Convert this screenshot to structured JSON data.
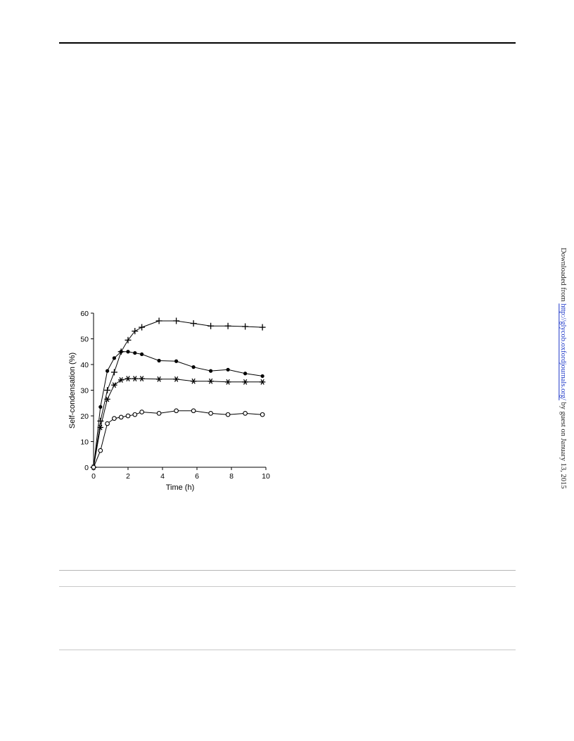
{
  "side_note": {
    "prefix": "Downloaded from ",
    "link": "http://glycob.oxfordjournals.org/",
    "suffix": " by guest on January 13, 2015"
  },
  "chart_data": {
    "type": "line",
    "xlabel": "Time (h)",
    "ylabel": "Self-condensation (%)",
    "xlim": [
      0,
      10
    ],
    "ylim": [
      0,
      60
    ],
    "xticks": [
      0,
      2,
      4,
      6,
      8,
      10
    ],
    "yticks": [
      0,
      10,
      20,
      30,
      40,
      50,
      60
    ],
    "grid": false,
    "series": [
      {
        "marker": "plus",
        "x": [
          0,
          0.4,
          0.8,
          1.2,
          1.6,
          2.0,
          2.4,
          2.8,
          3.8,
          4.8,
          5.8,
          6.8,
          7.8,
          8.8,
          9.8
        ],
        "y": [
          0,
          18,
          30,
          37,
          45,
          49.5,
          53,
          54.5,
          57,
          57,
          56,
          55,
          55,
          54.8,
          54.5
        ]
      },
      {
        "marker": "filled-circle",
        "x": [
          0,
          0.4,
          0.8,
          1.2,
          1.6,
          2.0,
          2.4,
          2.8,
          3.8,
          4.8,
          5.8,
          6.8,
          7.8,
          8.8,
          9.8
        ],
        "y": [
          0,
          23.5,
          37.5,
          42.5,
          45,
          45,
          44.5,
          44,
          41.5,
          41.3,
          39,
          37.5,
          38,
          36.5,
          35.5
        ]
      },
      {
        "marker": "asterisk",
        "x": [
          0,
          0.4,
          0.8,
          1.2,
          1.6,
          2.0,
          2.4,
          2.8,
          3.8,
          4.8,
          5.8,
          6.8,
          7.8,
          8.8,
          9.8
        ],
        "y": [
          0,
          15.5,
          26.5,
          32,
          34,
          34.5,
          34.5,
          34.5,
          34.3,
          34.3,
          33.5,
          33.5,
          33.2,
          33.2,
          33.2
        ]
      },
      {
        "marker": "open-circle",
        "x": [
          0,
          0.4,
          0.8,
          1.2,
          1.6,
          2.0,
          2.4,
          2.8,
          3.8,
          4.8,
          5.8,
          6.8,
          7.8,
          8.8,
          9.8
        ],
        "y": [
          0,
          6.5,
          17,
          19,
          19.5,
          20,
          20.5,
          21.5,
          21,
          22,
          22,
          21,
          20.5,
          21,
          20.5
        ]
      }
    ]
  }
}
